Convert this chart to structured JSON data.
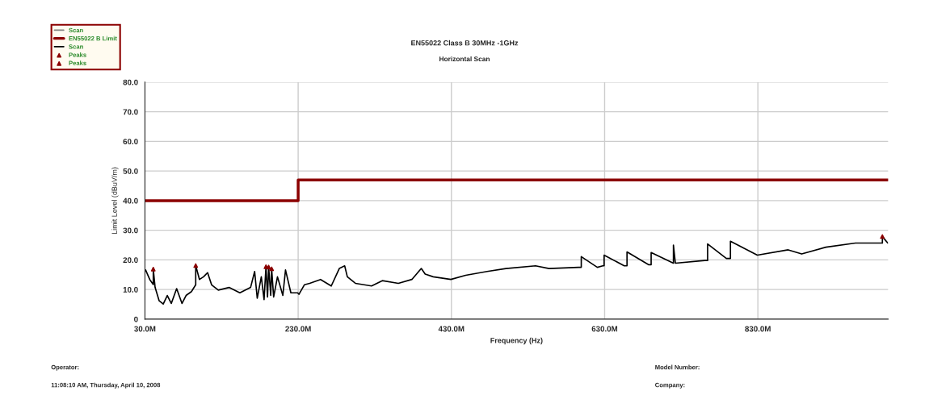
{
  "chart_data": {
    "type": "line",
    "title": "EN55022 Class B 30MHz -1GHz",
    "subtitle": "Horizontal Scan",
    "xlabel": "Frequency (Hz)",
    "ylabel": "Limit Level (dBuV/m)",
    "xlim": [
      30,
      1000
    ],
    "ylim": [
      0,
      80
    ],
    "xticks": [
      {
        "value": 30,
        "label": "30.0M"
      },
      {
        "value": 230,
        "label": "230.0M"
      },
      {
        "value": 430,
        "label": "430.0M"
      },
      {
        "value": 630,
        "label": "630.0M"
      },
      {
        "value": 830,
        "label": "830.0M"
      }
    ],
    "yticks": [
      0,
      {
        "value": 10,
        "label": "10.0"
      },
      {
        "value": 20,
        "label": "20.0"
      },
      {
        "value": 30,
        "label": "30.0"
      },
      {
        "value": 40,
        "label": "40.0"
      },
      {
        "value": 50,
        "label": "50.0"
      },
      {
        "value": 60,
        "label": "60.0"
      },
      {
        "value": 70,
        "label": "70.0"
      },
      {
        "value": 80,
        "label": "80.0"
      }
    ],
    "grid": true,
    "legend": "top left",
    "series": [
      {
        "name": "Scan",
        "color": "#808080"
      },
      {
        "name": "EN55022 B Limit",
        "type": "step",
        "color": "#8b0000",
        "x": [
          30,
          230,
          1000
        ],
        "values": [
          40,
          47,
          47
        ]
      },
      {
        "name": "Scan",
        "color": "#000000",
        "x": [
          30.9,
          36.3,
          40.9,
          40.9,
          43.3,
          48.6,
          53.9,
          59.2,
          64.4,
          71.4,
          78.4,
          83.7,
          90.7,
          96.3,
          96.3,
          101.2,
          106.5,
          111.8,
          117,
          125.8,
          139.8,
          153.9,
          167.9,
          173.2,
          176.6,
          181.9,
          185.5,
          188,
          190,
          191.5,
          194.2,
          195.4,
          198,
          203,
          210,
          213.5,
          220.5,
          229.3,
          231,
          238.1,
          245,
          259.2,
          273.2,
          283.7,
          290.7,
          294.2,
          304.7,
          325.8,
          339.8,
          360.8,
          378.4,
          390.7,
          395.8,
          406.3,
          429.3,
          448.6,
          476.6,
          501.2,
          539.8,
          557.4,
          596,
          599.5,
          599.5,
          620.5,
          627.6,
          629.3,
          629.3,
          655.6,
          659.2,
          659.2,
          687.2,
          690.7,
          690.7,
          719.8,
          719.8,
          722.3,
          760.8,
          764.4,
          764.4,
          788.9,
          794.2,
          794.2,
          829.3,
          869.6,
          887.2,
          918.8,
          957.4,
          988.9,
          992.5,
          992.5,
          999.5
        ],
        "values": [
          16.6,
          13.4,
          11.7,
          16.9,
          10.7,
          6.2,
          5.1,
          8.0,
          5.3,
          10.3,
          5.3,
          8.0,
          9.3,
          11.6,
          18.1,
          13.4,
          14.3,
          15.7,
          11.6,
          9.8,
          10.7,
          8.9,
          10.7,
          16.1,
          7.1,
          14.3,
          6.6,
          17.7,
          7.5,
          17.6,
          8.0,
          17.0,
          7.5,
          14.3,
          8.0,
          16.6,
          8.9,
          8.9,
          8.4,
          11.6,
          12.1,
          13.4,
          11.2,
          17.1,
          18.0,
          14.3,
          12.1,
          11.2,
          13.0,
          12.1,
          13.4,
          17.1,
          15.2,
          14.3,
          13.4,
          14.8,
          16.1,
          17.1,
          18.0,
          17.1,
          17.5,
          17.5,
          21.1,
          17.5,
          18.0,
          18.0,
          21.6,
          18.0,
          18.0,
          22.7,
          18.4,
          18.4,
          22.5,
          18.9,
          25.0,
          18.9,
          19.8,
          19.8,
          25.4,
          20.5,
          20.5,
          26.3,
          21.6,
          23.4,
          22.0,
          24.3,
          25.7,
          25.7,
          25.7,
          27.9,
          25.7
        ]
      },
      {
        "name": "Peaks",
        "type": "scatter",
        "color": "#8b0000",
        "marker": "triangle",
        "x": [
          40.9,
          96.3,
          188
        ],
        "values": [
          16.9,
          18.1,
          17.7
        ]
      },
      {
        "name": "Peaks",
        "type": "scatter",
        "color": "#8b0000",
        "marker": "triangle",
        "x": [
          191.5,
          195.4,
          992.5
        ],
        "values": [
          17.6,
          17.0,
          27.9
        ]
      }
    ],
    "annotations": [
      "Operator:",
      "11:08:10 AM, Thursday, April 10, 2008",
      "Model Number:",
      "Company:"
    ]
  }
}
